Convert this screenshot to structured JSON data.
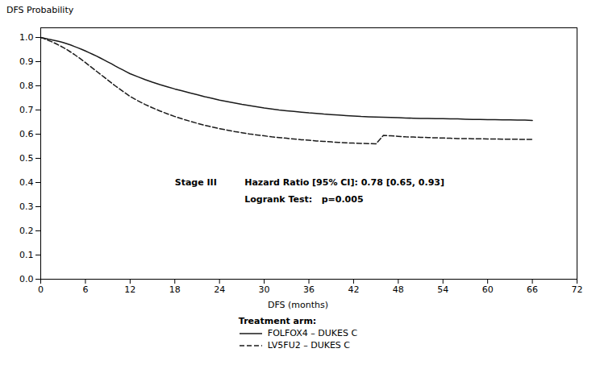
{
  "chart_data": {
    "type": "line",
    "ylabel": "DFS Probability",
    "xlabel": "DFS (months)",
    "legend_title": "Treatment arm:",
    "legend": "bottom",
    "grid": false,
    "xlim": [
      0,
      72
    ],
    "ylim": [
      0.0,
      1.04
    ],
    "xticks": [
      0,
      6,
      12,
      18,
      24,
      30,
      36,
      42,
      48,
      54,
      60,
      66,
      72
    ],
    "yticks": [
      {
        "value": 0.0,
        "label": "0.0"
      },
      0.1,
      0.2,
      0.3,
      0.4,
      0.5,
      0.6,
      0.7,
      0.8,
      0.9,
      {
        "value": 1.0,
        "label": "1.0"
      }
    ],
    "annotations": [
      "Stage III",
      "Hazard Ratio [95% CI]: 0.78 [0.65, 0.93]",
      "Logrank Test:   p=0.005"
    ],
    "x": [
      0,
      0.3,
      0.6,
      1,
      1.5,
      2,
      2.5,
      3,
      3.5,
      4,
      4.5,
      5,
      5.5,
      6,
      6.5,
      7,
      7.5,
      8,
      8.5,
      9,
      9.5,
      10,
      10.5,
      11,
      11.5,
      12,
      13,
      14,
      15,
      16,
      17,
      18,
      19,
      20,
      21,
      22,
      23,
      24,
      25,
      26,
      27,
      28,
      29,
      30,
      31,
      32,
      33,
      34,
      35,
      36,
      37,
      38,
      39,
      40,
      41,
      42,
      43,
      44,
      45,
      46,
      47,
      48,
      49,
      50,
      51,
      52,
      53,
      54,
      55,
      56,
      57,
      58,
      59,
      60,
      61,
      62,
      63,
      64,
      65,
      66
    ],
    "series": [
      {
        "name": "FOLFOX4 – DUKES C",
        "color": "#1a1a1a",
        "line_style": "solid",
        "values": [
          1.0,
          0.998,
          0.996,
          0.993,
          0.99,
          0.987,
          0.983,
          0.979,
          0.974,
          0.969,
          0.963,
          0.957,
          0.951,
          0.944,
          0.937,
          0.93,
          0.923,
          0.915,
          0.907,
          0.899,
          0.891,
          0.882,
          0.874,
          0.866,
          0.858,
          0.85,
          0.838,
          0.826,
          0.815,
          0.805,
          0.796,
          0.787,
          0.779,
          0.771,
          0.763,
          0.755,
          0.748,
          0.741,
          0.735,
          0.729,
          0.723,
          0.718,
          0.713,
          0.708,
          0.704,
          0.7,
          0.697,
          0.694,
          0.691,
          0.688,
          0.686,
          0.683,
          0.681,
          0.679,
          0.677,
          0.675,
          0.673,
          0.672,
          0.671,
          0.67,
          0.669,
          0.668,
          0.667,
          0.666,
          0.665,
          0.665,
          0.664,
          0.664,
          0.663,
          0.663,
          0.662,
          0.661,
          0.661,
          0.66,
          0.66,
          0.659,
          0.659,
          0.658,
          0.658,
          0.657
        ]
      },
      {
        "name": "LV5FU2 – DUKES C",
        "color": "#1a1a1a",
        "line_style": "dashed",
        "values": [
          1.0,
          0.997,
          0.993,
          0.988,
          0.982,
          0.975,
          0.967,
          0.959,
          0.95,
          0.94,
          0.93,
          0.919,
          0.908,
          0.896,
          0.884,
          0.872,
          0.86,
          0.848,
          0.836,
          0.824,
          0.812,
          0.8,
          0.789,
          0.778,
          0.767,
          0.756,
          0.739,
          0.723,
          0.709,
          0.696,
          0.684,
          0.673,
          0.663,
          0.654,
          0.645,
          0.637,
          0.63,
          0.623,
          0.617,
          0.611,
          0.606,
          0.601,
          0.597,
          0.593,
          0.589,
          0.586,
          0.583,
          0.58,
          0.577,
          0.575,
          0.572,
          0.57,
          0.568,
          0.566,
          0.564,
          0.563,
          0.562,
          0.561,
          0.56,
          0.595,
          0.593,
          0.591,
          0.589,
          0.588,
          0.587,
          0.586,
          0.585,
          0.584,
          0.583,
          0.582,
          0.582,
          0.581,
          0.581,
          0.58,
          0.58,
          0.579,
          0.579,
          0.579,
          0.578,
          0.578
        ]
      }
    ]
  }
}
